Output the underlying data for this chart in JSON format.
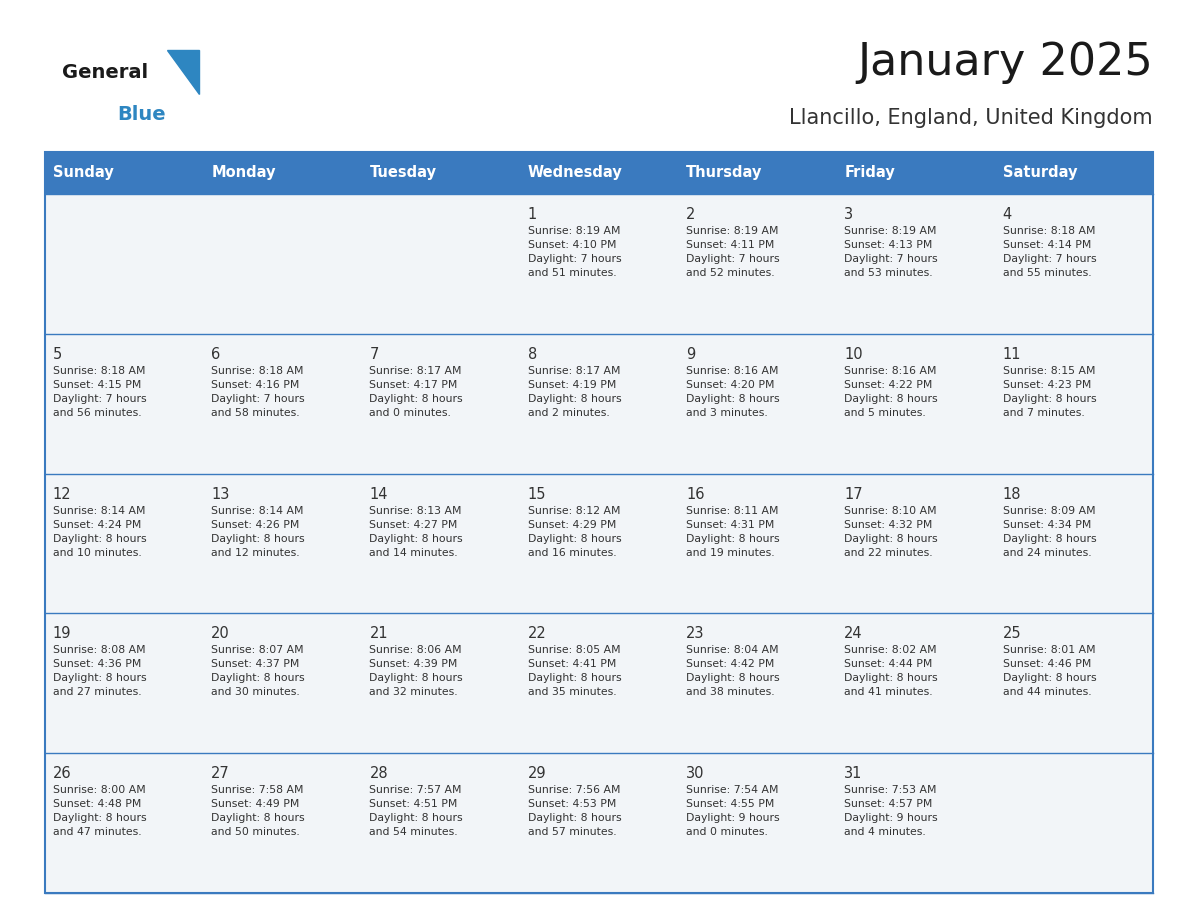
{
  "title": "January 2025",
  "subtitle": "Llancillo, England, United Kingdom",
  "header_bg": "#3a7abf",
  "header_text": "#ffffff",
  "day_names": [
    "Sunday",
    "Monday",
    "Tuesday",
    "Wednesday",
    "Thursday",
    "Friday",
    "Saturday"
  ],
  "cell_bg": "#f2f5f8",
  "empty_cell_bg": "#f2f5f8",
  "cell_border": "#3a7abf",
  "date_color": "#333333",
  "text_color": "#333333",
  "logo_general_color": "#1a1a1a",
  "logo_blue_color": "#2e86c1",
  "weeks": [
    [
      {
        "day": "",
        "info": ""
      },
      {
        "day": "",
        "info": ""
      },
      {
        "day": "",
        "info": ""
      },
      {
        "day": "1",
        "info": "Sunrise: 8:19 AM\nSunset: 4:10 PM\nDaylight: 7 hours\nand 51 minutes."
      },
      {
        "day": "2",
        "info": "Sunrise: 8:19 AM\nSunset: 4:11 PM\nDaylight: 7 hours\nand 52 minutes."
      },
      {
        "day": "3",
        "info": "Sunrise: 8:19 AM\nSunset: 4:13 PM\nDaylight: 7 hours\nand 53 minutes."
      },
      {
        "day": "4",
        "info": "Sunrise: 8:18 AM\nSunset: 4:14 PM\nDaylight: 7 hours\nand 55 minutes."
      }
    ],
    [
      {
        "day": "5",
        "info": "Sunrise: 8:18 AM\nSunset: 4:15 PM\nDaylight: 7 hours\nand 56 minutes."
      },
      {
        "day": "6",
        "info": "Sunrise: 8:18 AM\nSunset: 4:16 PM\nDaylight: 7 hours\nand 58 minutes."
      },
      {
        "day": "7",
        "info": "Sunrise: 8:17 AM\nSunset: 4:17 PM\nDaylight: 8 hours\nand 0 minutes."
      },
      {
        "day": "8",
        "info": "Sunrise: 8:17 AM\nSunset: 4:19 PM\nDaylight: 8 hours\nand 2 minutes."
      },
      {
        "day": "9",
        "info": "Sunrise: 8:16 AM\nSunset: 4:20 PM\nDaylight: 8 hours\nand 3 minutes."
      },
      {
        "day": "10",
        "info": "Sunrise: 8:16 AM\nSunset: 4:22 PM\nDaylight: 8 hours\nand 5 minutes."
      },
      {
        "day": "11",
        "info": "Sunrise: 8:15 AM\nSunset: 4:23 PM\nDaylight: 8 hours\nand 7 minutes."
      }
    ],
    [
      {
        "day": "12",
        "info": "Sunrise: 8:14 AM\nSunset: 4:24 PM\nDaylight: 8 hours\nand 10 minutes."
      },
      {
        "day": "13",
        "info": "Sunrise: 8:14 AM\nSunset: 4:26 PM\nDaylight: 8 hours\nand 12 minutes."
      },
      {
        "day": "14",
        "info": "Sunrise: 8:13 AM\nSunset: 4:27 PM\nDaylight: 8 hours\nand 14 minutes."
      },
      {
        "day": "15",
        "info": "Sunrise: 8:12 AM\nSunset: 4:29 PM\nDaylight: 8 hours\nand 16 minutes."
      },
      {
        "day": "16",
        "info": "Sunrise: 8:11 AM\nSunset: 4:31 PM\nDaylight: 8 hours\nand 19 minutes."
      },
      {
        "day": "17",
        "info": "Sunrise: 8:10 AM\nSunset: 4:32 PM\nDaylight: 8 hours\nand 22 minutes."
      },
      {
        "day": "18",
        "info": "Sunrise: 8:09 AM\nSunset: 4:34 PM\nDaylight: 8 hours\nand 24 minutes."
      }
    ],
    [
      {
        "day": "19",
        "info": "Sunrise: 8:08 AM\nSunset: 4:36 PM\nDaylight: 8 hours\nand 27 minutes."
      },
      {
        "day": "20",
        "info": "Sunrise: 8:07 AM\nSunset: 4:37 PM\nDaylight: 8 hours\nand 30 minutes."
      },
      {
        "day": "21",
        "info": "Sunrise: 8:06 AM\nSunset: 4:39 PM\nDaylight: 8 hours\nand 32 minutes."
      },
      {
        "day": "22",
        "info": "Sunrise: 8:05 AM\nSunset: 4:41 PM\nDaylight: 8 hours\nand 35 minutes."
      },
      {
        "day": "23",
        "info": "Sunrise: 8:04 AM\nSunset: 4:42 PM\nDaylight: 8 hours\nand 38 minutes."
      },
      {
        "day": "24",
        "info": "Sunrise: 8:02 AM\nSunset: 4:44 PM\nDaylight: 8 hours\nand 41 minutes."
      },
      {
        "day": "25",
        "info": "Sunrise: 8:01 AM\nSunset: 4:46 PM\nDaylight: 8 hours\nand 44 minutes."
      }
    ],
    [
      {
        "day": "26",
        "info": "Sunrise: 8:00 AM\nSunset: 4:48 PM\nDaylight: 8 hours\nand 47 minutes."
      },
      {
        "day": "27",
        "info": "Sunrise: 7:58 AM\nSunset: 4:49 PM\nDaylight: 8 hours\nand 50 minutes."
      },
      {
        "day": "28",
        "info": "Sunrise: 7:57 AM\nSunset: 4:51 PM\nDaylight: 8 hours\nand 54 minutes."
      },
      {
        "day": "29",
        "info": "Sunrise: 7:56 AM\nSunset: 4:53 PM\nDaylight: 8 hours\nand 57 minutes."
      },
      {
        "day": "30",
        "info": "Sunrise: 7:54 AM\nSunset: 4:55 PM\nDaylight: 9 hours\nand 0 minutes."
      },
      {
        "day": "31",
        "info": "Sunrise: 7:53 AM\nSunset: 4:57 PM\nDaylight: 9 hours\nand 4 minutes."
      },
      {
        "day": "",
        "info": ""
      }
    ]
  ],
  "fig_width": 11.88,
  "fig_height": 9.18,
  "dpi": 100
}
